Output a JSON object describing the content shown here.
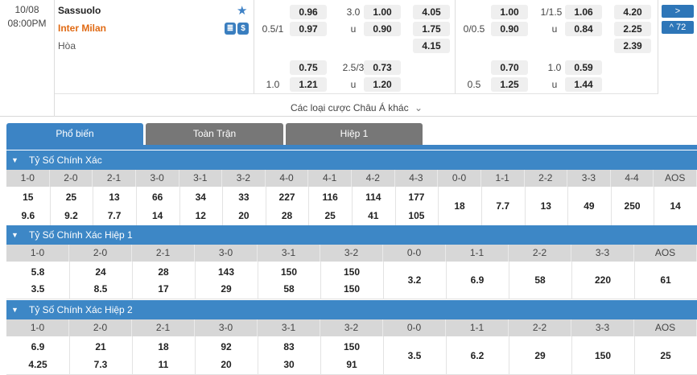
{
  "match": {
    "date": "10/08",
    "time": "08:00PM",
    "home": "Sassuolo",
    "away": "Inter Milan",
    "draw": "Hòa",
    "badge1": "≣",
    "badge2": "$",
    "other_bets": "Các loại cược Châu Á khác",
    "more_count": "72",
    "next_icon": ">",
    "up_icon": "^",
    "odds1": {
      "r1c1": "0.96",
      "r1lbl": "3.0",
      "r1c2": "1.00",
      "r1c3": "4.05",
      "r2lbl1": "0.5/1",
      "r2c1": "0.97",
      "r2lbl2": "u",
      "r2c2": "0.90",
      "r2c3": "1.75",
      "r3c3": "4.15",
      "r4c1": "0.75",
      "r4lbl": "2.5/3",
      "r4c2": "0.73",
      "r5lbl1": "1.0",
      "r5c1": "1.21",
      "r5lbl2": "u",
      "r5c2": "1.20"
    },
    "odds2": {
      "r1c1": "1.00",
      "r1lbl": "1/1.5",
      "r1c2": "1.06",
      "r1c3": "4.20",
      "r2lbl1": "0/0.5",
      "r2c1": "0.90",
      "r2lbl2": "u",
      "r2c2": "0.84",
      "r2c3": "2.25",
      "r3c3": "2.39",
      "r4c1": "0.70",
      "r4lbl": "1.0",
      "r4c2": "0.59",
      "r5lbl1": "0.5",
      "r5c1": "1.25",
      "r5lbl2": "u",
      "r5c2": "1.44"
    }
  },
  "tabs": [
    "Phổ biến",
    "Toàn Trận",
    "Hiệp 1"
  ],
  "sections": [
    {
      "title": "Tỷ Số Chính Xác",
      "headers": [
        "1-0",
        "2-0",
        "2-1",
        "3-0",
        "3-1",
        "3-2",
        "4-0",
        "4-1",
        "4-2",
        "4-3",
        "0-0",
        "1-1",
        "2-2",
        "3-3",
        "4-4",
        "AOS"
      ],
      "top": [
        "15",
        "25",
        "13",
        "66",
        "34",
        "33",
        "227",
        "116",
        "114",
        "177"
      ],
      "bottom": [
        "9.6",
        "9.2",
        "7.7",
        "14",
        "12",
        "20",
        "28",
        "25",
        "41",
        "105"
      ],
      "single": [
        "18",
        "7.7",
        "13",
        "49",
        "250",
        "14"
      ]
    },
    {
      "title": "Tỷ Số Chính Xác Hiệp 1",
      "headers": [
        "1-0",
        "2-0",
        "2-1",
        "3-0",
        "3-1",
        "3-2",
        "0-0",
        "1-1",
        "2-2",
        "3-3",
        "AOS"
      ],
      "top": [
        "5.8",
        "24",
        "28",
        "143",
        "150",
        "150"
      ],
      "bottom": [
        "3.5",
        "8.5",
        "17",
        "29",
        "58",
        "150"
      ],
      "single": [
        "3.2",
        "6.9",
        "58",
        "220",
        "61"
      ]
    },
    {
      "title": "Tỷ Số Chính Xác Hiệp 2",
      "headers": [
        "1-0",
        "2-0",
        "2-1",
        "3-0",
        "3-1",
        "3-2",
        "0-0",
        "1-1",
        "2-2",
        "3-3",
        "AOS"
      ],
      "top": [
        "6.9",
        "21",
        "18",
        "92",
        "83",
        "150"
      ],
      "bottom": [
        "4.25",
        "7.3",
        "11",
        "20",
        "30",
        "91"
      ],
      "single": [
        "3.5",
        "6.2",
        "29",
        "150",
        "25"
      ]
    }
  ],
  "icons": {
    "star": "★",
    "chevron": "⌄",
    "collapse": "▼"
  }
}
